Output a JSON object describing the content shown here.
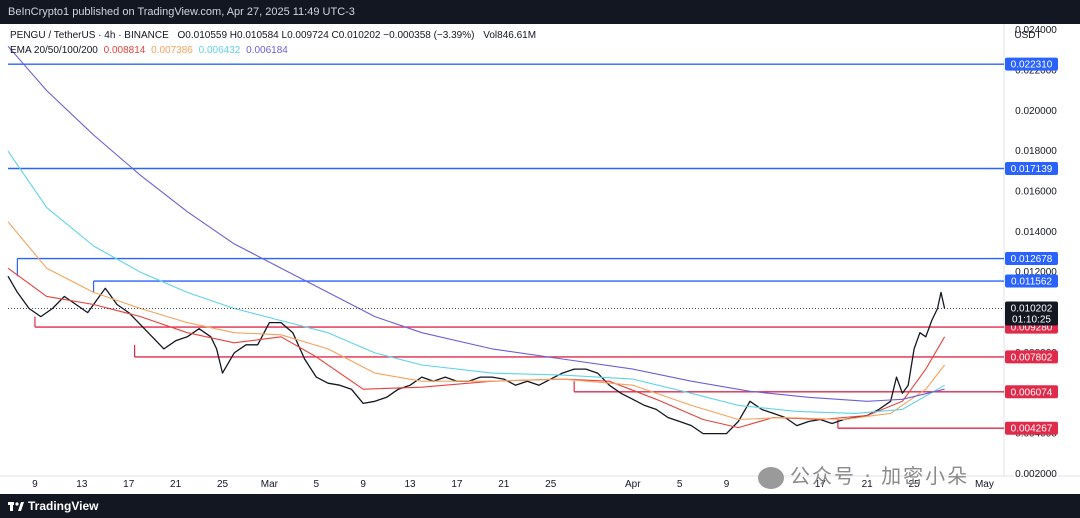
{
  "header": {
    "published_text": "BeInCrypto1 published on TradingView.com, Apr 27, 2025 11:49 UTC-3"
  },
  "legend": {
    "symbol": "PENGU / TetherUS · 4h · BINANCE",
    "ohlc": "O0.010559 H0.010584 L0.009724 C0.010202 −0.000358 (−3.39%)",
    "volume": "Vol846.61M",
    "ema_label": "EMA 20/50/100/200",
    "ema_values": [
      {
        "value": "0.008814",
        "color": "#e8423c"
      },
      {
        "value": "0.007386",
        "color": "#f5a25d"
      },
      {
        "value": "0.006432",
        "color": "#5fd3e8"
      },
      {
        "value": "0.006184",
        "color": "#6c5fd8"
      }
    ]
  },
  "chart_data": {
    "type": "line",
    "title": "PENGU / TetherUS · 4h · BINANCE",
    "ylabel": "USDT",
    "ylim": [
      0.0019,
      0.0243
    ],
    "y_ticks": [
      "0.024000",
      "0.022000",
      "0.020000",
      "0.018000",
      "0.016000",
      "0.014000",
      "0.012000",
      "0.010000",
      "0.008000",
      "0.006000",
      "0.004000",
      "0.002000"
    ],
    "y_tick_values": [
      0.024,
      0.022,
      0.02,
      0.018,
      0.016,
      0.014,
      0.012,
      0.01,
      0.008,
      0.006,
      0.004,
      0.002
    ],
    "x_tick_labels": [
      "9",
      "13",
      "17",
      "21",
      "25",
      "Mar",
      "5",
      "9",
      "13",
      "17",
      "21",
      "25",
      "Apr",
      "5",
      "9",
      "13",
      "17",
      "21",
      "25",
      "May"
    ],
    "x_tick_days": [
      -21,
      -17,
      -13,
      -9,
      -5,
      -1,
      3,
      7,
      11,
      15,
      19,
      23,
      30,
      34,
      38,
      42,
      46,
      50,
      54,
      60
    ],
    "x_range_days": [
      -23.3,
      61.5
    ],
    "x_day_zero": "Mar 2, 2025",
    "last_price": "0.010202",
    "countdown": "01:10:25",
    "resistance_levels": [
      {
        "value": 0.02231,
        "label": "0.022310",
        "from_day": -23.3
      },
      {
        "value": 0.017139,
        "label": "0.017139",
        "from_day": -23.3
      },
      {
        "value": 0.012678,
        "label": "0.012678",
        "from_day": -22.5
      },
      {
        "value": 0.011562,
        "label": "0.011562",
        "from_day": -16.0
      }
    ],
    "support_levels": [
      {
        "value": 0.00928,
        "label": "0.009280",
        "from_day": -21.0
      },
      {
        "value": 0.007802,
        "label": "0.007802",
        "from_day": -12.5
      },
      {
        "value": 0.006074,
        "label": "0.006074",
        "from_day": 25.0
      },
      {
        "value": 0.004267,
        "label": "0.004267",
        "from_day": 47.5
      }
    ],
    "series": [
      {
        "role": "price",
        "color": "#131722",
        "points": [
          [
            -23.3,
            0.0118
          ],
          [
            -22.5,
            0.011
          ],
          [
            -21.5,
            0.0102
          ],
          [
            -20.5,
            0.0098
          ],
          [
            -19.5,
            0.0102
          ],
          [
            -18.5,
            0.0108
          ],
          [
            -17.5,
            0.0104
          ],
          [
            -16.5,
            0.01
          ],
          [
            -15.5,
            0.0108
          ],
          [
            -15.0,
            0.0112
          ],
          [
            -14.0,
            0.0104
          ],
          [
            -13.0,
            0.01
          ],
          [
            -12.0,
            0.0094
          ],
          [
            -11.0,
            0.0088
          ],
          [
            -10.0,
            0.0082
          ],
          [
            -9.0,
            0.0086
          ],
          [
            -8.0,
            0.0088
          ],
          [
            -7.0,
            0.0092
          ],
          [
            -6.0,
            0.0088
          ],
          [
            -5.5,
            0.0082
          ],
          [
            -5.0,
            0.007
          ],
          [
            -4.0,
            0.008
          ],
          [
            -3.0,
            0.0084
          ],
          [
            -2.0,
            0.0084
          ],
          [
            -1.0,
            0.0095
          ],
          [
            0.0,
            0.0095
          ],
          [
            1.0,
            0.009
          ],
          [
            2.0,
            0.0077
          ],
          [
            3.0,
            0.0068
          ],
          [
            4.0,
            0.0065
          ],
          [
            5.0,
            0.0064
          ],
          [
            6.0,
            0.0062
          ],
          [
            7.0,
            0.0055
          ],
          [
            8.0,
            0.0056
          ],
          [
            9.0,
            0.0058
          ],
          [
            10.0,
            0.0062
          ],
          [
            11.0,
            0.0064
          ],
          [
            12.0,
            0.0068
          ],
          [
            13.0,
            0.0066
          ],
          [
            14.0,
            0.0068
          ],
          [
            15.0,
            0.0066
          ],
          [
            16.0,
            0.0066
          ],
          [
            17.0,
            0.0068
          ],
          [
            18.0,
            0.0068
          ],
          [
            19.0,
            0.0067
          ],
          [
            20.0,
            0.0064
          ],
          [
            21.0,
            0.0066
          ],
          [
            22.0,
            0.0064
          ],
          [
            23.0,
            0.0067
          ],
          [
            24.0,
            0.007
          ],
          [
            25.0,
            0.0072
          ],
          [
            26.0,
            0.0072
          ],
          [
            27.0,
            0.007
          ],
          [
            28.0,
            0.0064
          ],
          [
            29.0,
            0.006
          ],
          [
            30.0,
            0.0057
          ],
          [
            31.0,
            0.0054
          ],
          [
            32.0,
            0.0052
          ],
          [
            33.0,
            0.0048
          ],
          [
            34.0,
            0.0046
          ],
          [
            35.0,
            0.0044
          ],
          [
            36.0,
            0.004
          ],
          [
            37.0,
            0.004
          ],
          [
            38.0,
            0.004
          ],
          [
            39.0,
            0.0046
          ],
          [
            40.0,
            0.0056
          ],
          [
            41.0,
            0.0052
          ],
          [
            42.0,
            0.005
          ],
          [
            43.0,
            0.0048
          ],
          [
            44.0,
            0.0044
          ],
          [
            45.0,
            0.0046
          ],
          [
            46.0,
            0.0047
          ],
          [
            47.0,
            0.0045
          ],
          [
            48.0,
            0.0047
          ],
          [
            49.0,
            0.0048
          ],
          [
            50.0,
            0.0049
          ],
          [
            51.0,
            0.0052
          ],
          [
            52.0,
            0.0056
          ],
          [
            52.5,
            0.0068
          ],
          [
            53.0,
            0.006
          ],
          [
            53.5,
            0.0064
          ],
          [
            54.0,
            0.0082
          ],
          [
            54.5,
            0.009
          ],
          [
            55.0,
            0.0088
          ],
          [
            55.5,
            0.0096
          ],
          [
            56.0,
            0.0102
          ],
          [
            56.3,
            0.011
          ],
          [
            56.6,
            0.0102
          ]
        ]
      },
      {
        "role": "ema20",
        "name": "EMA 20",
        "color": "#e8423c",
        "points": [
          [
            -23.3,
            0.0122
          ],
          [
            -20.0,
            0.0108
          ],
          [
            -16.0,
            0.0104
          ],
          [
            -12.0,
            0.0098
          ],
          [
            -8.0,
            0.009
          ],
          [
            -4.0,
            0.0085
          ],
          [
            0.0,
            0.0088
          ],
          [
            3.0,
            0.0078
          ],
          [
            7.0,
            0.0062
          ],
          [
            12.0,
            0.0063
          ],
          [
            18.0,
            0.0066
          ],
          [
            24.0,
            0.0067
          ],
          [
            28.0,
            0.0066
          ],
          [
            32.0,
            0.0057
          ],
          [
            36.0,
            0.0047
          ],
          [
            39.0,
            0.0043
          ],
          [
            42.0,
            0.0048
          ],
          [
            46.0,
            0.0047
          ],
          [
            50.0,
            0.0049
          ],
          [
            53.0,
            0.0056
          ],
          [
            55.0,
            0.0072
          ],
          [
            56.6,
            0.0088
          ]
        ]
      },
      {
        "role": "ema50",
        "name": "EMA 50",
        "color": "#f5a25d",
        "points": [
          [
            -23.3,
            0.0145
          ],
          [
            -20.0,
            0.0122
          ],
          [
            -16.0,
            0.011
          ],
          [
            -12.0,
            0.0102
          ],
          [
            -8.0,
            0.0095
          ],
          [
            -4.0,
            0.009
          ],
          [
            0.0,
            0.0089
          ],
          [
            4.0,
            0.0082
          ],
          [
            8.0,
            0.007
          ],
          [
            12.0,
            0.0066
          ],
          [
            18.0,
            0.0066
          ],
          [
            24.0,
            0.0067
          ],
          [
            30.0,
            0.0064
          ],
          [
            35.0,
            0.0054
          ],
          [
            39.0,
            0.0047
          ],
          [
            43.0,
            0.0048
          ],
          [
            48.0,
            0.0047
          ],
          [
            52.0,
            0.005
          ],
          [
            55.0,
            0.0062
          ],
          [
            56.6,
            0.0074
          ]
        ]
      },
      {
        "role": "ema100",
        "name": "EMA 100",
        "color": "#5fd3e8",
        "points": [
          [
            -23.3,
            0.018
          ],
          [
            -20.0,
            0.0152
          ],
          [
            -16.0,
            0.0133
          ],
          [
            -12.0,
            0.012
          ],
          [
            -8.0,
            0.011
          ],
          [
            -4.0,
            0.0102
          ],
          [
            0.0,
            0.0096
          ],
          [
            4.0,
            0.009
          ],
          [
            8.0,
            0.008
          ],
          [
            12.0,
            0.0074
          ],
          [
            18.0,
            0.007
          ],
          [
            24.0,
            0.0069
          ],
          [
            30.0,
            0.0067
          ],
          [
            35.0,
            0.006
          ],
          [
            39.0,
            0.0054
          ],
          [
            44.0,
            0.0051
          ],
          [
            49.0,
            0.005
          ],
          [
            53.0,
            0.0052
          ],
          [
            56.6,
            0.0064
          ]
        ]
      },
      {
        "role": "ema200",
        "name": "EMA 200",
        "color": "#6c5fd8",
        "points": [
          [
            -23.3,
            0.0232
          ],
          [
            -20.0,
            0.021
          ],
          [
            -16.0,
            0.0188
          ],
          [
            -12.0,
            0.0168
          ],
          [
            -8.0,
            0.015
          ],
          [
            -4.0,
            0.0134
          ],
          [
            0.0,
            0.0122
          ],
          [
            4.0,
            0.011
          ],
          [
            8.0,
            0.0098
          ],
          [
            12.0,
            0.009
          ],
          [
            18.0,
            0.0082
          ],
          [
            24.0,
            0.0077
          ],
          [
            30.0,
            0.0072
          ],
          [
            35.0,
            0.0066
          ],
          [
            40.0,
            0.0061
          ],
          [
            45.0,
            0.0058
          ],
          [
            50.0,
            0.0056
          ],
          [
            53.0,
            0.0057
          ],
          [
            56.6,
            0.0062
          ]
        ]
      }
    ]
  },
  "footer": {
    "brand": "TradingView"
  },
  "watermark": {
    "text": "公众号 · 加密小朵"
  }
}
